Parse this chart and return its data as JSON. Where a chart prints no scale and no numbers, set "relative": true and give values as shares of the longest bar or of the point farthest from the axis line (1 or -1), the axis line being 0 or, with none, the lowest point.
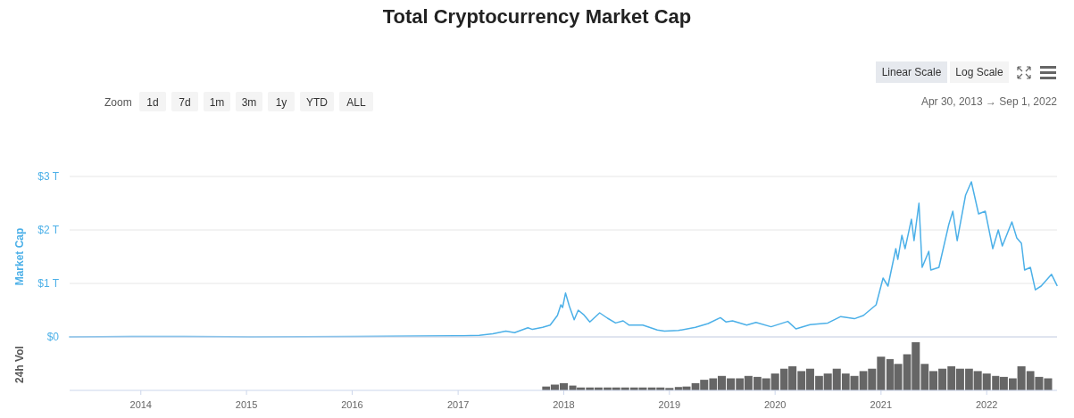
{
  "chart_data": [
    {
      "type": "line",
      "title": "Total Cryptocurrency Market Cap",
      "ylabel": "Market Cap",
      "grid": "y",
      "tick_labels": "y",
      "annotations": [
        "Zoom",
        "1d",
        "7d",
        "1m",
        "3m",
        "1y",
        "YTD",
        "ALL",
        "Linear Scale",
        "Log Scale",
        "Apr 30, 2013 → Sep 1, 2022"
      ],
      "xlim": [
        "2013-04-30",
        "2022-09-01"
      ],
      "ylim": [
        0,
        3
      ],
      "yticks": [
        {
          "value": 0,
          "label": "$0"
        },
        {
          "value": 1,
          "label": "$1 T"
        },
        {
          "value": 2,
          "label": "$2 T"
        },
        {
          "value": 3,
          "label": "$3 T"
        }
      ],
      "series": [
        {
          "color": "#4cb0e8",
          "x": [
            "2013-04-30",
            "2013-11-30",
            "2014-06-01",
            "2015-01-15",
            "2016-01-15",
            "2017-01-15",
            "2017-03-15",
            "2017-05-01",
            "2017-06-15",
            "2017-07-15",
            "2017-08-30",
            "2017-09-15",
            "2017-10-20",
            "2017-11-15",
            "2017-12-10",
            "2017-12-22",
            "2017-12-28",
            "2018-01-07",
            "2018-01-20",
            "2018-02-06",
            "2018-02-20",
            "2018-03-10",
            "2018-04-01",
            "2018-05-05",
            "2018-06-01",
            "2018-06-29",
            "2018-07-25",
            "2018-08-15",
            "2018-10-01",
            "2018-11-20",
            "2018-12-15",
            "2019-02-01",
            "2019-04-01",
            "2019-05-15",
            "2019-06-26",
            "2019-07-15",
            "2019-08-07",
            "2019-09-25",
            "2019-10-27",
            "2019-12-18",
            "2020-02-14",
            "2020-03-13",
            "2020-05-01",
            "2020-07-01",
            "2020-08-15",
            "2020-10-01",
            "2020-11-01",
            "2020-12-15",
            "2021-01-08",
            "2021-01-25",
            "2021-02-21",
            "2021-02-28",
            "2021-03-14",
            "2021-03-25",
            "2021-04-16",
            "2021-04-25",
            "2021-05-12",
            "2021-05-23",
            "2021-06-15",
            "2021-06-22",
            "2021-07-20",
            "2021-08-23",
            "2021-09-06",
            "2021-09-21",
            "2021-10-20",
            "2021-11-09",
            "2021-12-04",
            "2021-12-27",
            "2022-01-22",
            "2022-02-10",
            "2022-02-24",
            "2022-03-29",
            "2022-04-15",
            "2022-05-01",
            "2022-05-12",
            "2022-06-01",
            "2022-06-18",
            "2022-07-08",
            "2022-08-13",
            "2022-09-01"
          ],
          "values": [
            0,
            0.01,
            0.01,
            0,
            0.01,
            0.02,
            0.03,
            0.06,
            0.11,
            0.08,
            0.17,
            0.14,
            0.18,
            0.22,
            0.4,
            0.6,
            0.55,
            0.82,
            0.58,
            0.32,
            0.5,
            0.42,
            0.28,
            0.45,
            0.35,
            0.26,
            0.3,
            0.22,
            0.22,
            0.13,
            0.11,
            0.12,
            0.18,
            0.25,
            0.36,
            0.28,
            0.3,
            0.22,
            0.27,
            0.19,
            0.29,
            0.15,
            0.23,
            0.26,
            0.38,
            0.34,
            0.4,
            0.6,
            1.1,
            0.95,
            1.65,
            1.45,
            1.9,
            1.65,
            2.2,
            1.8,
            2.5,
            1.3,
            1.6,
            1.25,
            1.3,
            2.1,
            2.35,
            1.8,
            2.65,
            2.9,
            2.3,
            2.35,
            1.65,
            2.0,
            1.7,
            2.15,
            1.85,
            1.75,
            1.25,
            1.3,
            0.88,
            0.95,
            1.17,
            0.96
          ]
        }
      ]
    },
    {
      "type": "bar",
      "ylabel": "24h Vol",
      "relative": true,
      "tick_labels": "x",
      "grid": false,
      "xlim": [
        "2013-04-30",
        "2022-09-01"
      ],
      "xticks": [
        {
          "value": "2014",
          "label": "2014"
        },
        {
          "value": "2015",
          "label": "2015"
        },
        {
          "value": "2016",
          "label": "2016"
        },
        {
          "value": "2017",
          "label": "2017"
        },
        {
          "value": "2018",
          "label": "2018"
        },
        {
          "value": "2019",
          "label": "2019"
        },
        {
          "value": "2020",
          "label": "2020"
        },
        {
          "value": "2021",
          "label": "2021"
        },
        {
          "value": "2022",
          "label": "2022"
        }
      ],
      "series": [
        {
          "color": "#666666",
          "x": [
            "2017-11",
            "2017-12",
            "2018-01",
            "2018-02",
            "2018-03",
            "2018-04",
            "2018-05",
            "2018-06",
            "2018-07",
            "2018-08",
            "2018-09",
            "2018-10",
            "2018-11",
            "2018-12",
            "2019-01",
            "2019-02",
            "2019-03",
            "2019-04",
            "2019-05",
            "2019-06",
            "2019-07",
            "2019-08",
            "2019-09",
            "2019-10",
            "2019-11",
            "2019-12",
            "2020-01",
            "2020-02",
            "2020-03",
            "2020-04",
            "2020-05",
            "2020-06",
            "2020-07",
            "2020-08",
            "2020-09",
            "2020-10",
            "2020-11",
            "2020-12",
            "2021-01",
            "2021-02",
            "2021-03",
            "2021-04",
            "2021-05",
            "2021-06",
            "2021-07",
            "2021-08",
            "2021-09",
            "2021-10",
            "2021-11",
            "2021-12",
            "2022-01",
            "2022-02",
            "2022-03",
            "2022-04",
            "2022-05",
            "2022-06",
            "2022-07",
            "2022-08"
          ],
          "values": [
            0.08,
            0.12,
            0.15,
            0.1,
            0.06,
            0.06,
            0.06,
            0.06,
            0.06,
            0.06,
            0.06,
            0.06,
            0.06,
            0.06,
            0.05,
            0.07,
            0.08,
            0.15,
            0.22,
            0.25,
            0.3,
            0.25,
            0.25,
            0.3,
            0.28,
            0.25,
            0.35,
            0.45,
            0.5,
            0.4,
            0.45,
            0.3,
            0.35,
            0.45,
            0.35,
            0.3,
            0.4,
            0.45,
            0.7,
            0.65,
            0.55,
            0.75,
            1.0,
            0.55,
            0.4,
            0.45,
            0.5,
            0.45,
            0.45,
            0.4,
            0.35,
            0.3,
            0.28,
            0.25,
            0.5,
            0.4,
            0.28,
            0.25
          ]
        }
      ]
    }
  ]
}
